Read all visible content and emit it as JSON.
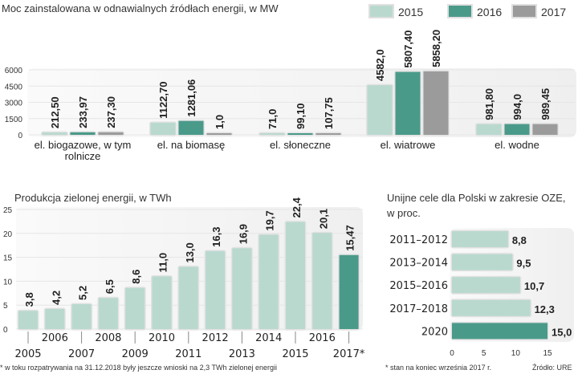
{
  "colors": {
    "2015": "#b9d9cf",
    "2016": "#4a9a8a",
    "2017": "#9b9b9b",
    "highlight": "#4a9a8a",
    "base": "#b9d9cf"
  },
  "chart_data": [
    {
      "type": "bar",
      "title": "Moc zainstalowana w odnawialnych źródłach energii, w MW",
      "categories": [
        [
          "el. biogazowe, w tym",
          "rolnicze"
        ],
        [
          "el. na biomasę"
        ],
        [
          "el. słoneczne"
        ],
        [
          "el. wiatrowe"
        ],
        [
          "el. wodne"
        ]
      ],
      "series": [
        {
          "name": "2015",
          "values": [
            212.5,
            1122.7,
            71.0,
            4582.0,
            981.8
          ],
          "labels": [
            "212,50",
            "1122,70",
            "71,0",
            "4582,0",
            "981,80"
          ]
        },
        {
          "name": "2016",
          "values": [
            233.97,
            1281.06,
            99.1,
            5807.4,
            994.0
          ],
          "labels": [
            "233,97",
            "1281,06",
            "99,10",
            "5807,40",
            "994,0"
          ]
        },
        {
          "name": "2017",
          "values": [
            237.3,
            1.0,
            107.75,
            5858.2,
            989.45
          ],
          "labels": [
            "237,30",
            "1,0",
            "107,75",
            "5858,20",
            "989,45"
          ]
        }
      ],
      "yticks": [
        "0",
        "1500",
        "3000",
        "4500",
        "6000"
      ],
      "ylim": [
        0,
        6000
      ],
      "legend": "top-right",
      "grid": true
    },
    {
      "type": "bar",
      "title": "Produkcja zielonej energii, w TWh",
      "categories": [
        "2005",
        "2006",
        "2007",
        "2008",
        "2009",
        "2010",
        "2011",
        "2012",
        "2013",
        "2014",
        "2015",
        "2016",
        "2017*"
      ],
      "values": [
        3.8,
        4.2,
        5.2,
        6.5,
        8.6,
        11.0,
        13.0,
        16.3,
        16.9,
        19.7,
        22.4,
        20.1,
        15.47
      ],
      "labels": [
        "3,8",
        "4,2",
        "5,2",
        "6,5",
        "8,6",
        "11,0",
        "13,0",
        "16,3",
        "16,9",
        "19,7",
        "22,4",
        "20,1",
        "15,47"
      ],
      "yticks": [
        "0",
        "5",
        "10",
        "15",
        "20",
        "25"
      ],
      "ylim": [
        0,
        25
      ],
      "footnote": "* w toku rozpatrywania na 31.12.2018 były jeszcze wnioski na 2,3 TWh zielonej energii"
    },
    {
      "type": "bar",
      "orientation": "horizontal",
      "title": [
        "Unijne cele dla Polski w zakresie OZE,",
        "w proc."
      ],
      "categories": [
        "2011–2012",
        "2013–2014",
        "2015–2016",
        "2017–2018",
        "2020"
      ],
      "values": [
        8.8,
        9.5,
        10.7,
        12.3,
        15.0
      ],
      "labels": [
        "8,8",
        "9,5",
        "10,7",
        "12,3",
        "15,0"
      ],
      "xticks": [
        "0",
        "5",
        "10",
        "15"
      ],
      "xlim": [
        0,
        15
      ],
      "footnote": "* stan na koniec września 2017 r.",
      "source": "Źródło: URE"
    }
  ]
}
